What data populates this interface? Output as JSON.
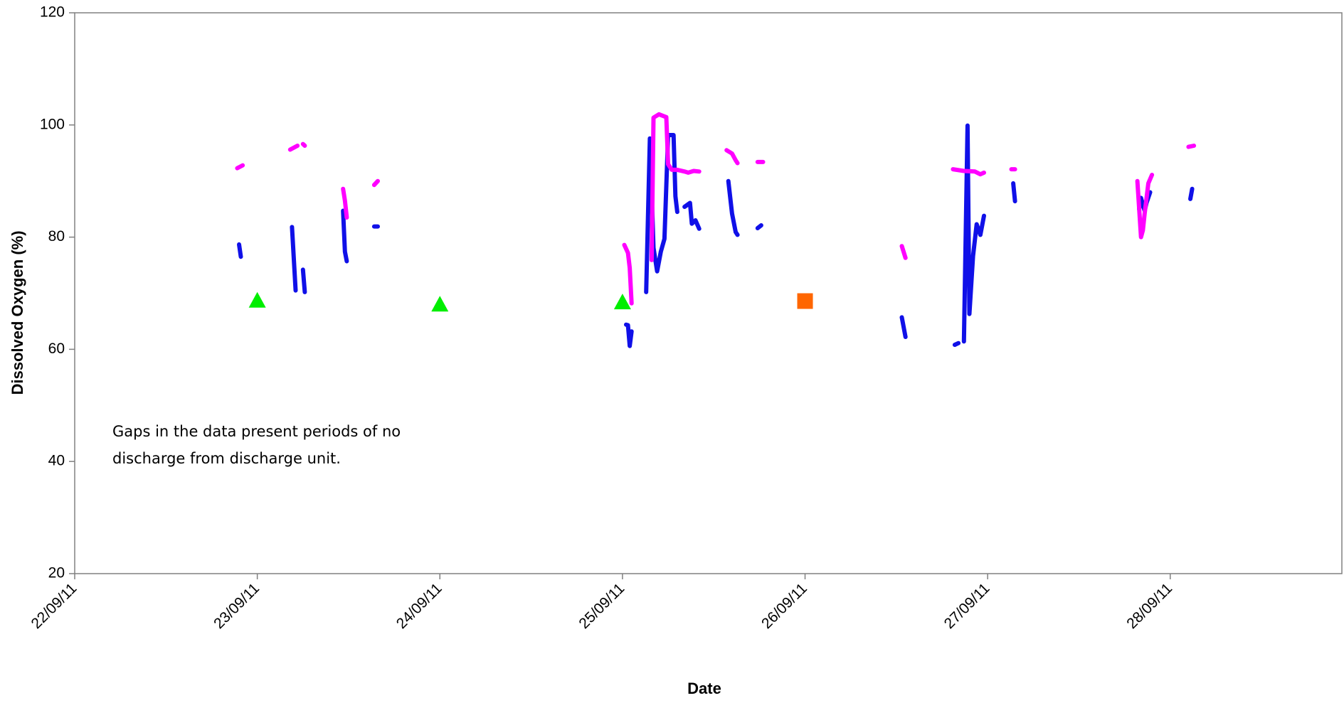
{
  "chart_data": {
    "type": "line",
    "x_label": "Date",
    "y_label": "Dissolved Oxygen (%)",
    "annotation": [
      "Gaps in the data present periods of no",
      "discharge from discharge unit."
    ],
    "xlim": [
      22,
      28.94
    ],
    "ylim": [
      20,
      120
    ],
    "xticks": [
      {
        "value": 22,
        "label": "22/09/11"
      },
      {
        "value": 23,
        "label": "23/09/11"
      },
      {
        "value": 24,
        "label": "24/09/11"
      },
      {
        "value": 25,
        "label": "25/09/11"
      },
      {
        "value": 26,
        "label": "26/09/11"
      },
      {
        "value": 27,
        "label": "27/09/11"
      },
      {
        "value": 28,
        "label": "28/09/11"
      }
    ],
    "yticks": [
      20,
      40,
      60,
      80,
      100,
      120
    ],
    "series": [
      {
        "type": "line",
        "color": "#1010e8",
        "x": [
          22.9,
          22.91,
          null,
          23.19,
          23.21,
          null,
          23.25,
          23.26,
          null,
          23.47,
          23.48,
          23.49,
          null,
          23.64,
          23.66,
          null,
          25.02,
          25.03,
          25.04,
          25.05,
          null,
          25.13,
          25.15,
          25.17,
          25.19,
          25.21,
          25.23,
          25.25,
          25.28,
          25.29,
          25.3,
          null,
          25.34,
          25.37,
          25.38,
          25.4,
          25.42,
          null,
          25.58,
          25.6,
          25.62,
          25.63,
          null,
          25.74,
          25.76,
          null,
          26.53,
          26.55,
          null,
          26.82,
          26.84,
          null,
          26.87,
          26.89,
          26.9,
          26.92,
          26.94,
          26.96,
          26.98,
          null,
          27.14,
          27.15,
          null,
          27.83,
          27.84,
          27.86,
          27.87,
          27.89,
          null,
          28.11,
          28.12
        ],
        "values": [
          78.7,
          76.5,
          null,
          81.8,
          70.5,
          null,
          74.2,
          70.2,
          null,
          84.7,
          77.4,
          75.7,
          null,
          81.9,
          81.9,
          null,
          64.4,
          64.3,
          60.6,
          63.2,
          null,
          70.2,
          97.6,
          78.1,
          73.9,
          77.4,
          79.7,
          98.2,
          98.2,
          87.3,
          84.5,
          null,
          85.4,
          86.1,
          82.4,
          83.0,
          81.5,
          null,
          90.0,
          84.2,
          80.9,
          80.4,
          null,
          81.6,
          82.1,
          null,
          65.7,
          62.2,
          null,
          60.8,
          61.1,
          null,
          61.4,
          99.9,
          66.3,
          76.6,
          82.3,
          80.4,
          83.8,
          null,
          89.6,
          86.4,
          null,
          85.0,
          87.0,
          84.7,
          86.1,
          88.0,
          null,
          86.8,
          88.6
        ]
      },
      {
        "type": "line",
        "color": "#ff00ff",
        "x": [
          22.89,
          22.92,
          null,
          23.18,
          23.22,
          null,
          23.25,
          23.26,
          null,
          23.47,
          23.48,
          23.49,
          null,
          23.64,
          23.66,
          null,
          25.01,
          25.03,
          25.04,
          25.05,
          null,
          25.16,
          25.17,
          25.2,
          25.24,
          25.25,
          25.27,
          25.3,
          25.34,
          25.36,
          25.39,
          25.42,
          null,
          25.57,
          25.6,
          25.62,
          25.63,
          null,
          25.74,
          25.77,
          null,
          26.53,
          26.55,
          null,
          26.81,
          26.87,
          26.93,
          26.96,
          26.98,
          null,
          27.13,
          27.15,
          null,
          27.82,
          27.84,
          27.85,
          27.86,
          27.88,
          27.9,
          null,
          28.1,
          28.13
        ],
        "values": [
          92.3,
          92.8,
          null,
          95.6,
          96.3,
          null,
          96.6,
          96.3,
          null,
          88.6,
          86.5,
          83.5,
          null,
          89.3,
          90.0,
          null,
          78.6,
          77.2,
          74.5,
          68.2,
          null,
          75.9,
          101.3,
          101.9,
          101.4,
          93.0,
          92.0,
          92.0,
          91.7,
          91.5,
          91.8,
          91.7,
          null,
          95.5,
          94.9,
          93.7,
          93.2,
          null,
          93.4,
          93.4,
          null,
          78.4,
          76.3,
          null,
          92.1,
          91.8,
          91.7,
          91.2,
          91.5,
          null,
          92.1,
          92.1,
          null,
          90.0,
          80.0,
          81.2,
          84.2,
          89.6,
          91.1,
          null,
          96.1,
          96.3
        ]
      },
      {
        "type": "scatter",
        "marker": "triangle",
        "color": "#00ee00",
        "x": [
          23.0,
          24.0,
          25.0
        ],
        "values": [
          68.7,
          68.0,
          68.4
        ]
      },
      {
        "type": "scatter",
        "marker": "square",
        "color": "#ff6600",
        "x": [
          26.0
        ],
        "values": [
          68.6
        ]
      }
    ]
  }
}
